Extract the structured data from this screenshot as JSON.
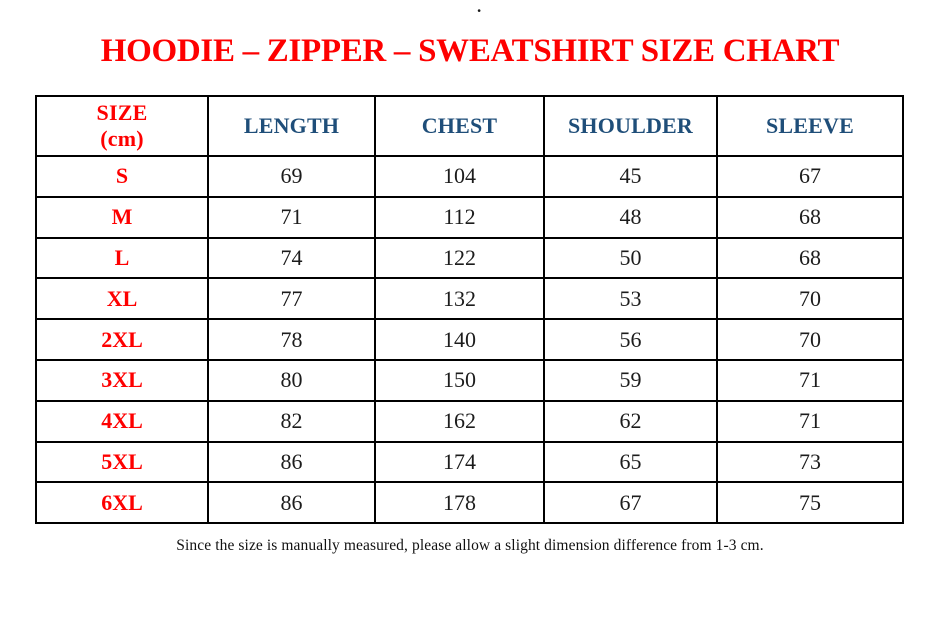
{
  "page": {
    "stray_mark": ".",
    "title": "HOODIE – ZIPPER – SWEATSHIRT SIZE CHART",
    "footnote": "Since the size is manually measured, please allow a slight dimension difference from 1-3 cm."
  },
  "colors": {
    "title_red": "#fe0000",
    "header_blue": "#1f4e79",
    "value_black": "#1c1c1c",
    "border_black": "#000000",
    "background": "#ffffff"
  },
  "table": {
    "header": {
      "size_line1": "SIZE",
      "size_line2": "(cm)",
      "cols": [
        "LENGTH",
        "CHEST",
        "SHOULDER",
        "SLEEVE"
      ]
    },
    "rows": [
      {
        "size": "S",
        "values": [
          "69",
          "104",
          "45",
          "67"
        ]
      },
      {
        "size": "M",
        "values": [
          "71",
          "112",
          "48",
          "68"
        ]
      },
      {
        "size": "L",
        "values": [
          "74",
          "122",
          "50",
          "68"
        ]
      },
      {
        "size": "XL",
        "values": [
          "77",
          "132",
          "53",
          "70"
        ]
      },
      {
        "size": "2XL",
        "values": [
          "78",
          "140",
          "56",
          "70"
        ]
      },
      {
        "size": "3XL",
        "values": [
          "80",
          "150",
          "59",
          "71"
        ]
      },
      {
        "size": "4XL",
        "values": [
          "82",
          "162",
          "62",
          "71"
        ]
      },
      {
        "size": "5XL",
        "values": [
          "86",
          "174",
          "65",
          "73"
        ]
      },
      {
        "size": "6XL",
        "values": [
          "86",
          "178",
          "67",
          "75"
        ]
      }
    ]
  },
  "chart_data": {
    "type": "table",
    "title": "HOODIE – ZIPPER – SWEATSHIRT SIZE CHART",
    "columns": [
      "SIZE (cm)",
      "LENGTH",
      "CHEST",
      "SHOULDER",
      "SLEEVE"
    ],
    "rows": [
      [
        "S",
        69,
        104,
        45,
        67
      ],
      [
        "M",
        71,
        112,
        48,
        68
      ],
      [
        "L",
        74,
        122,
        50,
        68
      ],
      [
        "XL",
        77,
        132,
        53,
        70
      ],
      [
        "2XL",
        78,
        140,
        56,
        70
      ],
      [
        "3XL",
        80,
        150,
        59,
        71
      ],
      [
        "4XL",
        82,
        162,
        62,
        71
      ],
      [
        "5XL",
        86,
        174,
        65,
        73
      ],
      [
        "6XL",
        86,
        178,
        67,
        75
      ]
    ],
    "footnote": "Since the size is manually measured, please allow a slight dimension difference from 1-3 cm."
  }
}
